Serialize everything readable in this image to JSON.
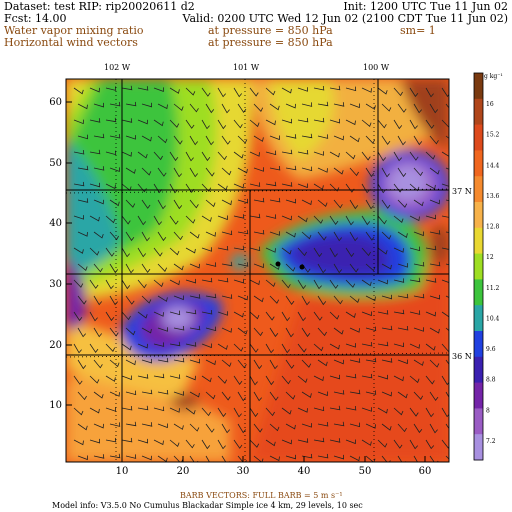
{
  "header": {
    "dataset": "Dataset: test  RIP: rip20020611 d2",
    "init": "Init: 1200 UTC Tue 11 Jun 02",
    "fcst": "Fcst:   14.00",
    "valid": "Valid: 0200 UTC Wed 12 Jun 02 (2100 CDT Tue 11 Jun 02)",
    "field1_name": "Water vapor mixing ratio",
    "field1_level": "at pressure =  850 hPa",
    "field1_sm": "sm= 1",
    "field2_name": "Horizontal wind vectors",
    "field2_level": "at pressure =  850 hPa"
  },
  "map": {
    "longitude_labels": [
      "102 W",
      "101 W",
      "100 W"
    ],
    "latitude_labels": [
      "37 N",
      "36 N"
    ],
    "y_axis_ticks": [
      "60",
      "50",
      "40",
      "30",
      "20",
      "10"
    ],
    "x_axis_ticks": [
      "10",
      "20",
      "30",
      "40",
      "50",
      "60"
    ]
  },
  "colorbar": {
    "unit": "g kg⁻¹",
    "labels": [
      "16",
      "15.2",
      "14.4",
      "13.6",
      "12.8",
      "12",
      "11.2",
      "10.4",
      "9.6",
      "8.8",
      "8",
      "7.2"
    ],
    "colors": [
      "#7a3a10",
      "#b0461a",
      "#dd4a1c",
      "#f0661e",
      "#f58a2e",
      "#f7b24a",
      "#e9d832",
      "#9ede22",
      "#3cc43c",
      "#2aa6a6",
      "#2040e0",
      "#3a20b0",
      "#7424a8",
      "#9a5cc4",
      "#a890e0"
    ]
  },
  "footer": {
    "barb_note": "BARB VECTORS:  FULL BARB = 5 m s⁻¹",
    "model_info": "Model info: V3.5.0 No Cumulus Blackadar  Simple ice    4 km,  29 levels,   10 sec"
  }
}
